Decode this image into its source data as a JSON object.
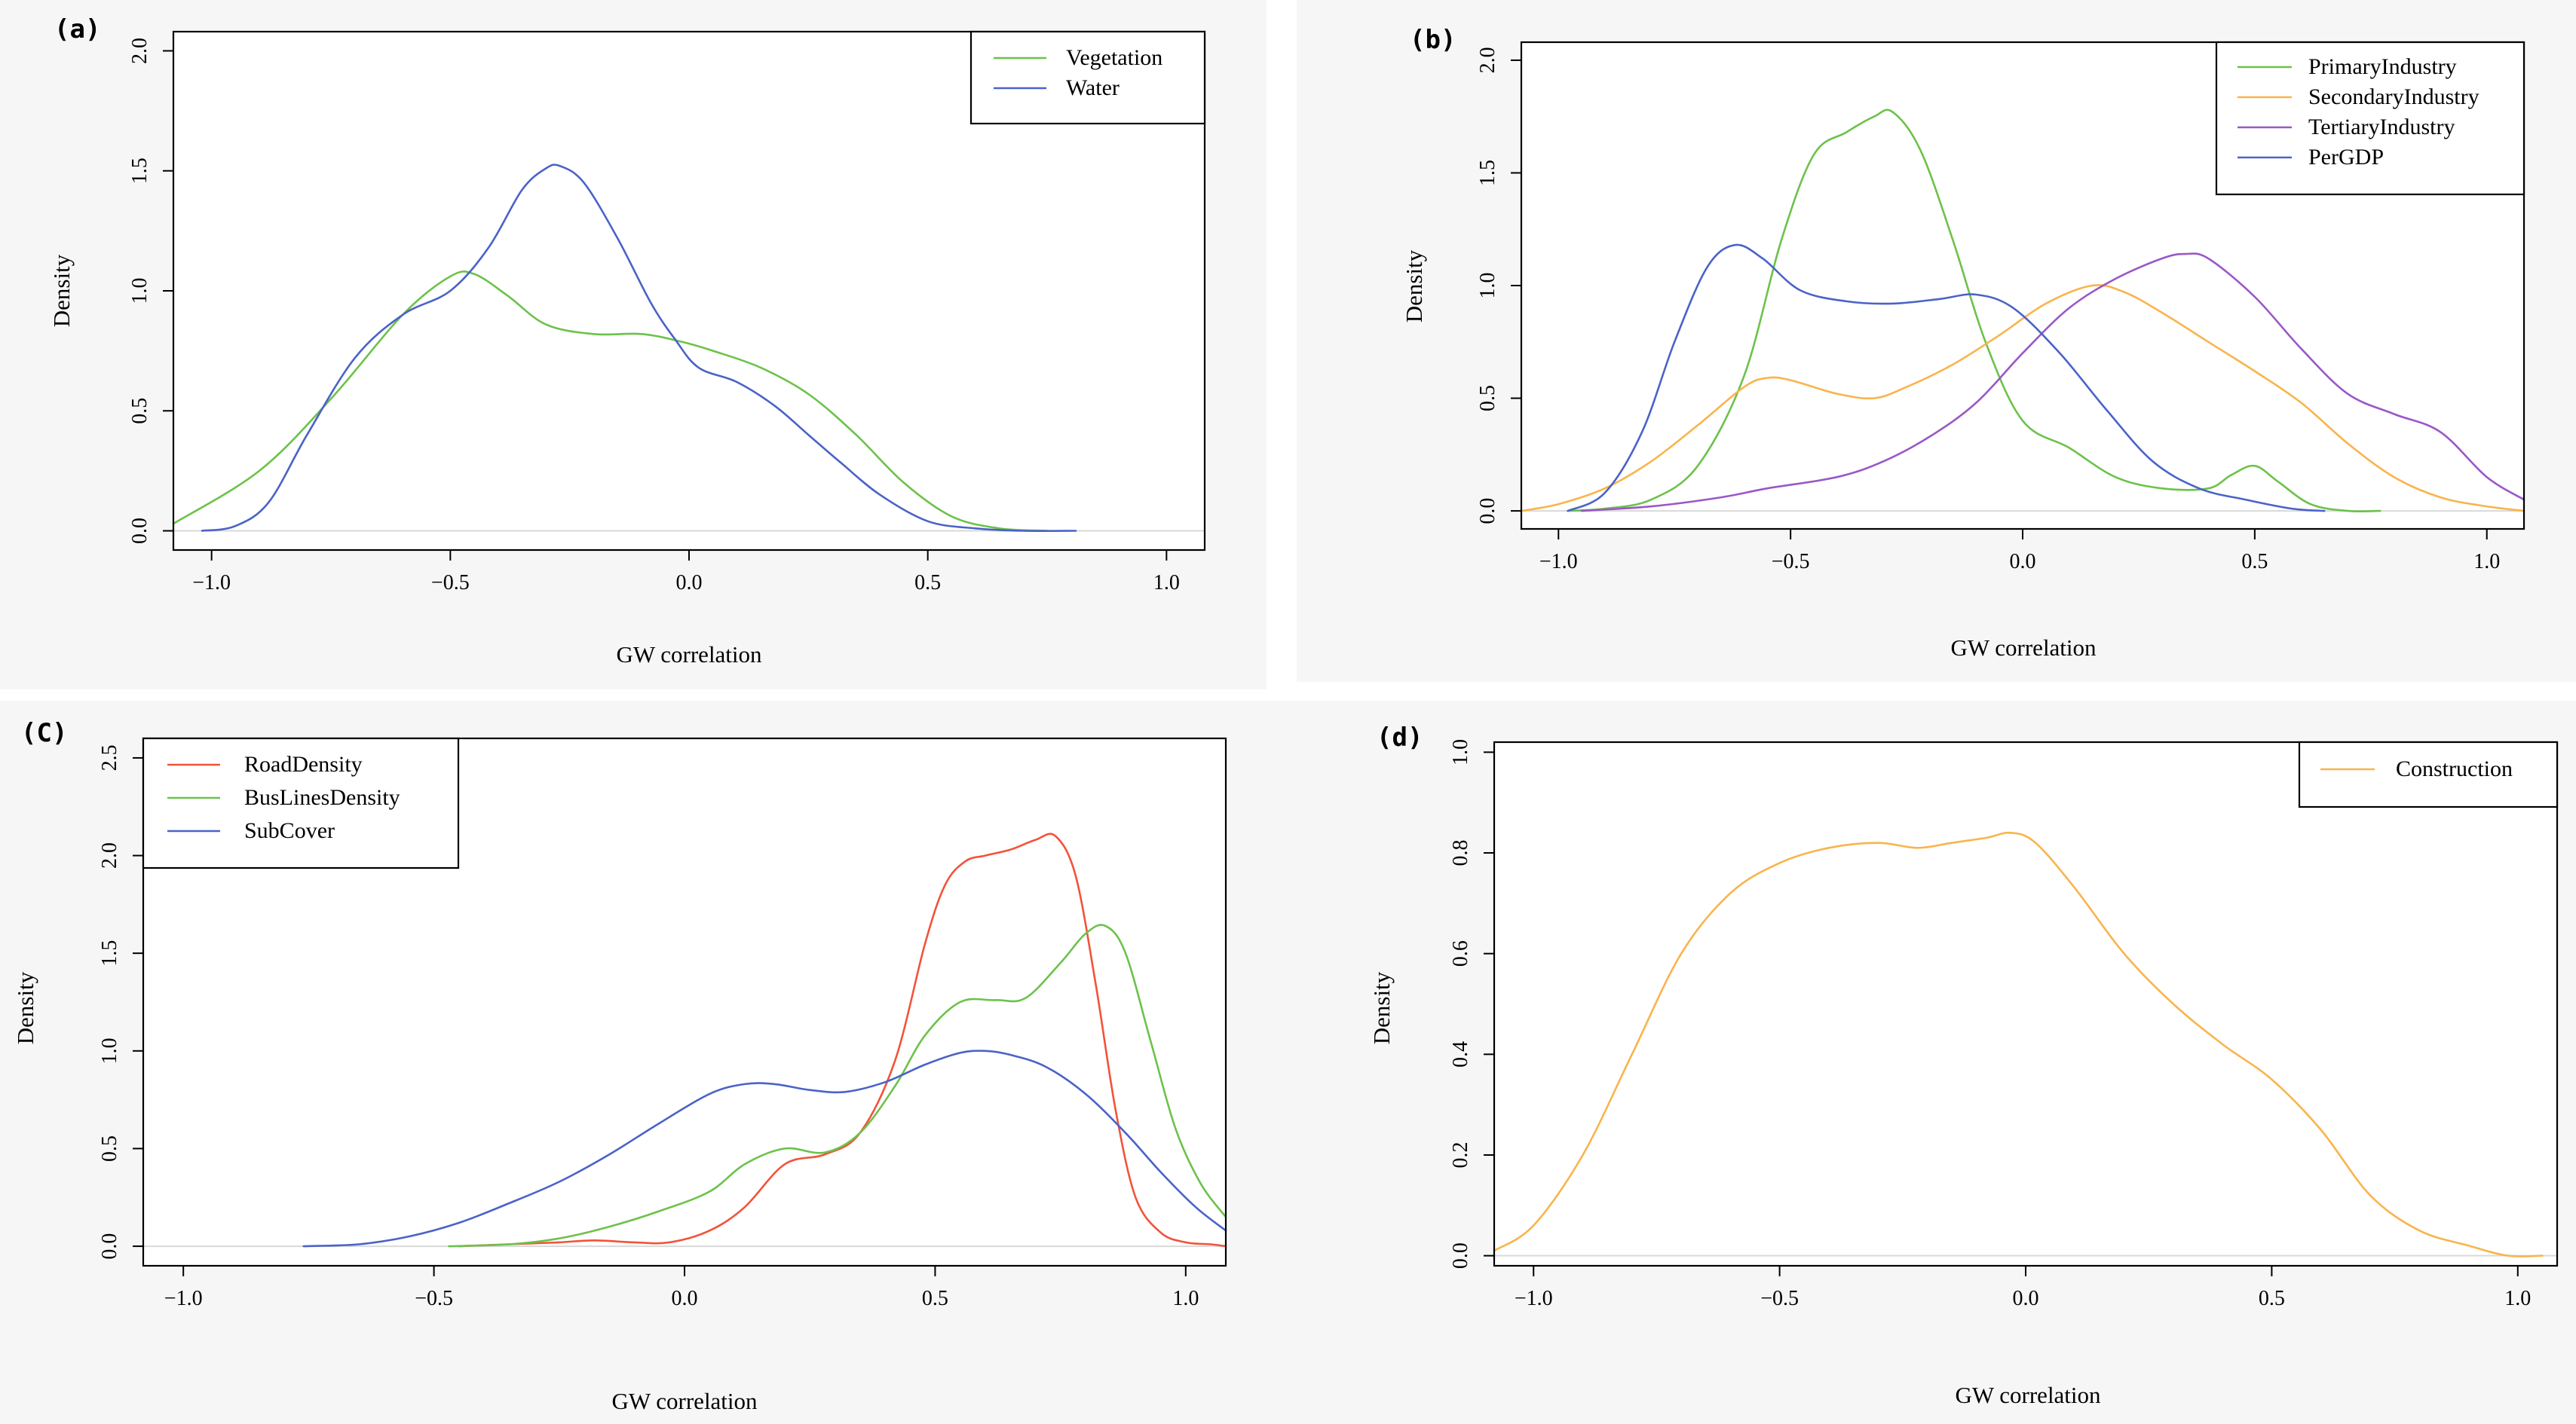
{
  "colors": {
    "green": "#6cc24a",
    "blue": "#4a63c8",
    "orange": "#f9b44c",
    "purple": "#9a58c6",
    "red": "#f2533a"
  },
  "chart_data": [
    {
      "type": "line",
      "panel_label": "(a)",
      "xlabel": "GW correlation",
      "ylabel": "Density",
      "xlim": [
        -1.08,
        1.08
      ],
      "ylim": [
        -0.08,
        2.08
      ],
      "xticks": [
        -1.0,
        -0.5,
        0.0,
        0.5,
        1.0
      ],
      "xtick_labels": [
        "−1.0",
        "−0.5",
        "0.0",
        "0.5",
        "1.0"
      ],
      "yticks": [
        0.0,
        0.5,
        1.0,
        1.5,
        2.0
      ],
      "ytick_labels": [
        "0.0",
        "0.5",
        "1.0",
        "1.5",
        "2.0"
      ],
      "legend": "top-right",
      "series": [
        {
          "name": "Vegetation",
          "color": "#6cc24a",
          "x": [
            -1.08,
            -0.9,
            -0.75,
            -0.6,
            -0.5,
            -0.45,
            -0.38,
            -0.3,
            -0.2,
            -0.1,
            -0.02,
            0.05,
            0.15,
            0.25,
            0.35,
            0.45,
            0.55,
            0.65,
            0.75
          ],
          "y": [
            0.03,
            0.25,
            0.55,
            0.9,
            1.06,
            1.07,
            0.98,
            0.86,
            0.82,
            0.82,
            0.79,
            0.75,
            0.68,
            0.57,
            0.4,
            0.2,
            0.06,
            0.01,
            0.0
          ]
        },
        {
          "name": "Water",
          "color": "#4a63c8",
          "x": [
            -1.02,
            -0.95,
            -0.88,
            -0.8,
            -0.7,
            -0.6,
            -0.5,
            -0.42,
            -0.35,
            -0.3,
            -0.27,
            -0.22,
            -0.15,
            -0.08,
            -0.03,
            0.02,
            0.1,
            0.18,
            0.25,
            0.32,
            0.4,
            0.5,
            0.6,
            0.7,
            0.81
          ],
          "y": [
            0.0,
            0.02,
            0.12,
            0.4,
            0.72,
            0.9,
            1.0,
            1.18,
            1.42,
            1.51,
            1.52,
            1.45,
            1.22,
            0.95,
            0.8,
            0.68,
            0.62,
            0.52,
            0.4,
            0.28,
            0.15,
            0.04,
            0.01,
            0.0,
            0.0
          ]
        }
      ]
    },
    {
      "type": "line",
      "panel_label": "(b)",
      "xlabel": "GW correlation",
      "ylabel": "Density",
      "xlim": [
        -1.08,
        1.08
      ],
      "ylim": [
        -0.08,
        2.08
      ],
      "xticks": [
        -1.0,
        -0.5,
        0.0,
        0.5,
        1.0
      ],
      "xtick_labels": [
        "−1.0",
        "−0.5",
        "0.0",
        "0.5",
        "1.0"
      ],
      "yticks": [
        0.0,
        0.5,
        1.0,
        1.5,
        2.0
      ],
      "ytick_labels": [
        "0.0",
        "0.5",
        "1.0",
        "1.5",
        "2.0"
      ],
      "legend": "top-right",
      "series": [
        {
          "name": "PrimaryIndustry",
          "color": "#6cc24a",
          "x": [
            -0.98,
            -0.9,
            -0.8,
            -0.7,
            -0.6,
            -0.52,
            -0.45,
            -0.38,
            -0.32,
            -0.28,
            -0.22,
            -0.15,
            -0.08,
            0.0,
            0.1,
            0.2,
            0.3,
            0.4,
            0.45,
            0.5,
            0.55,
            0.62,
            0.7,
            0.77
          ],
          "y": [
            0.0,
            0.01,
            0.05,
            0.2,
            0.6,
            1.2,
            1.58,
            1.68,
            1.75,
            1.77,
            1.6,
            1.2,
            0.75,
            0.4,
            0.28,
            0.15,
            0.1,
            0.1,
            0.16,
            0.2,
            0.13,
            0.03,
            0.0,
            0.0
          ]
        },
        {
          "name": "SecondaryIndustry",
          "color": "#f9b44c",
          "x": [
            -1.08,
            -1.0,
            -0.9,
            -0.8,
            -0.7,
            -0.6,
            -0.55,
            -0.5,
            -0.4,
            -0.32,
            -0.25,
            -0.15,
            -0.05,
            0.05,
            0.15,
            0.22,
            0.3,
            0.4,
            0.5,
            0.6,
            0.7,
            0.8,
            0.9,
            1.0,
            1.08
          ],
          "y": [
            0.0,
            0.03,
            0.1,
            0.22,
            0.38,
            0.55,
            0.59,
            0.58,
            0.52,
            0.5,
            0.55,
            0.65,
            0.78,
            0.92,
            1.0,
            0.97,
            0.88,
            0.75,
            0.62,
            0.48,
            0.3,
            0.15,
            0.06,
            0.02,
            0.0
          ]
        },
        {
          "name": "TertiaryIndustry",
          "color": "#9a58c6",
          "x": [
            -0.95,
            -0.8,
            -0.65,
            -0.55,
            -0.4,
            -0.3,
            -0.2,
            -0.1,
            0.0,
            0.1,
            0.2,
            0.3,
            0.35,
            0.4,
            0.5,
            0.6,
            0.7,
            0.8,
            0.9,
            1.0,
            1.08
          ],
          "y": [
            0.0,
            0.02,
            0.06,
            0.1,
            0.15,
            0.22,
            0.33,
            0.48,
            0.7,
            0.9,
            1.03,
            1.12,
            1.14,
            1.12,
            0.95,
            0.72,
            0.52,
            0.43,
            0.35,
            0.15,
            0.05
          ]
        },
        {
          "name": "PerGDP",
          "color": "#4a63c8",
          "x": [
            -0.98,
            -0.9,
            -0.82,
            -0.75,
            -0.68,
            -0.62,
            -0.56,
            -0.48,
            -0.38,
            -0.28,
            -0.18,
            -0.1,
            -0.02,
            0.08,
            0.18,
            0.28,
            0.38,
            0.48,
            0.58,
            0.65
          ],
          "y": [
            0.0,
            0.08,
            0.35,
            0.75,
            1.08,
            1.18,
            1.12,
            0.98,
            0.93,
            0.92,
            0.94,
            0.96,
            0.9,
            0.7,
            0.45,
            0.22,
            0.1,
            0.05,
            0.01,
            0.0
          ]
        }
      ]
    },
    {
      "type": "line",
      "panel_label": "(C)",
      "xlabel": "GW correlation",
      "ylabel": "Density",
      "xlim": [
        -1.08,
        1.08
      ],
      "ylim": [
        -0.1,
        2.6
      ],
      "xticks": [
        -1.0,
        -0.5,
        0.0,
        0.5,
        1.0
      ],
      "xtick_labels": [
        "−1.0",
        "−0.5",
        "0.0",
        "0.5",
        "1.0"
      ],
      "yticks": [
        0.0,
        0.5,
        1.0,
        1.5,
        2.0,
        2.5
      ],
      "ytick_labels": [
        "0.0",
        "0.5",
        "1.0",
        "1.5",
        "2.0",
        "2.5"
      ],
      "legend": "top-left",
      "series": [
        {
          "name": "RoadDensity",
          "color": "#f2533a",
          "x": [
            -0.45,
            -0.35,
            -0.25,
            -0.18,
            -0.1,
            -0.03,
            0.05,
            0.12,
            0.2,
            0.28,
            0.35,
            0.42,
            0.48,
            0.52,
            0.56,
            0.6,
            0.65,
            0.7,
            0.74,
            0.78,
            0.82,
            0.86,
            0.9,
            0.95,
            1.0,
            1.05,
            1.08
          ],
          "y": [
            0.0,
            0.01,
            0.02,
            0.03,
            0.02,
            0.02,
            0.08,
            0.2,
            0.42,
            0.47,
            0.58,
            0.95,
            1.55,
            1.85,
            1.97,
            2.0,
            2.03,
            2.08,
            2.1,
            1.9,
            1.35,
            0.7,
            0.25,
            0.07,
            0.02,
            0.01,
            0.0
          ]
        },
        {
          "name": "BusLinesDensity",
          "color": "#6cc24a",
          "x": [
            -0.47,
            -0.35,
            -0.25,
            -0.15,
            -0.05,
            0.05,
            0.12,
            0.2,
            0.28,
            0.35,
            0.42,
            0.48,
            0.55,
            0.62,
            0.68,
            0.75,
            0.8,
            0.84,
            0.88,
            0.93,
            0.98,
            1.03,
            1.08
          ],
          "y": [
            0.0,
            0.01,
            0.04,
            0.1,
            0.18,
            0.28,
            0.42,
            0.5,
            0.48,
            0.58,
            0.82,
            1.08,
            1.25,
            1.26,
            1.27,
            1.45,
            1.6,
            1.64,
            1.5,
            1.05,
            0.6,
            0.32,
            0.15
          ]
        },
        {
          "name": "SubCover",
          "color": "#4a63c8",
          "x": [
            -0.76,
            -0.65,
            -0.55,
            -0.45,
            -0.35,
            -0.25,
            -0.15,
            -0.05,
            0.05,
            0.12,
            0.18,
            0.25,
            0.32,
            0.4,
            0.48,
            0.55,
            0.6,
            0.65,
            0.72,
            0.8,
            0.88,
            0.95,
            1.02,
            1.08
          ],
          "y": [
            0.0,
            0.01,
            0.05,
            0.12,
            0.22,
            0.33,
            0.47,
            0.63,
            0.78,
            0.83,
            0.83,
            0.8,
            0.79,
            0.84,
            0.93,
            0.99,
            1.0,
            0.98,
            0.92,
            0.78,
            0.58,
            0.38,
            0.2,
            0.08
          ]
        }
      ]
    },
    {
      "type": "line",
      "panel_label": "(d)",
      "xlabel": "GW correlation",
      "ylabel": "Density",
      "xlim": [
        -1.08,
        1.08
      ],
      "ylim": [
        -0.02,
        1.02
      ],
      "xticks": [
        -1.0,
        -0.5,
        0.0,
        0.5,
        1.0
      ],
      "xtick_labels": [
        "−1.0",
        "−0.5",
        "0.0",
        "0.5",
        "1.0"
      ],
      "yticks": [
        0.0,
        0.2,
        0.4,
        0.6,
        0.8,
        1.0
      ],
      "ytick_labels": [
        "0.0",
        "0.2",
        "0.4",
        "0.6",
        "0.8",
        "1.0"
      ],
      "legend": "top-right",
      "series": [
        {
          "name": "Construction",
          "color": "#f9b44c",
          "x": [
            -1.08,
            -1.0,
            -0.9,
            -0.8,
            -0.7,
            -0.6,
            -0.5,
            -0.4,
            -0.3,
            -0.22,
            -0.15,
            -0.08,
            -0.03,
            0.02,
            0.1,
            0.2,
            0.3,
            0.4,
            0.5,
            0.6,
            0.7,
            0.8,
            0.9,
            0.98,
            1.05
          ],
          "y": [
            0.01,
            0.06,
            0.2,
            0.4,
            0.6,
            0.72,
            0.78,
            0.81,
            0.82,
            0.81,
            0.82,
            0.83,
            0.84,
            0.82,
            0.73,
            0.6,
            0.5,
            0.42,
            0.35,
            0.25,
            0.12,
            0.05,
            0.02,
            0.0,
            0.0
          ]
        }
      ]
    }
  ]
}
